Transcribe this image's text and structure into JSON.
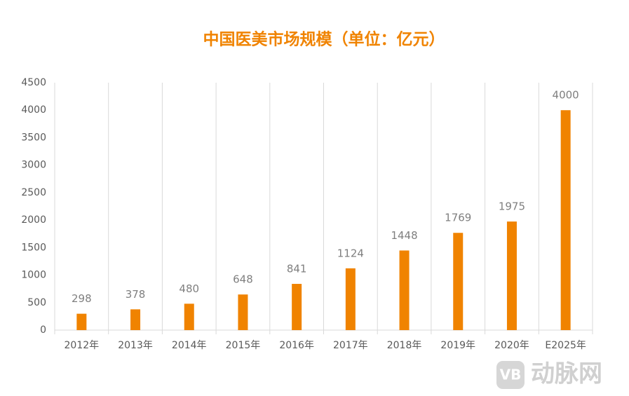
{
  "chart_data": {
    "type": "bar",
    "title": "中国医美市场规模（单位：亿元）",
    "categories": [
      "2012年",
      "2013年",
      "2014年",
      "2015年",
      "2016年",
      "2017年",
      "2018年",
      "2019年",
      "2020年",
      "E2025年"
    ],
    "values": [
      298,
      378,
      480,
      648,
      841,
      1124,
      1448,
      1769,
      1975,
      4000
    ],
    "color": "#f08300",
    "ylim": [
      0,
      4500
    ],
    "yticks": [
      0,
      500,
      1000,
      1500,
      2000,
      2500,
      3000,
      3500,
      4000,
      4500
    ],
    "watermark": "动脉网"
  }
}
